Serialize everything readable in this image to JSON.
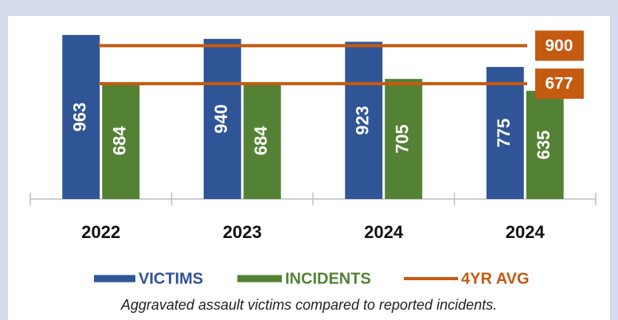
{
  "chart_data": {
    "type": "bar",
    "categories": [
      "2022",
      "2023",
      "2024",
      "2024"
    ],
    "series": [
      {
        "name": "VICTIMS",
        "color": "#2f5597",
        "values": [
          963,
          940,
          923,
          775
        ]
      },
      {
        "name": "INCIDENTS",
        "color": "#548235",
        "values": [
          684,
          684,
          705,
          635
        ]
      }
    ],
    "reference_lines": {
      "name": "4YR AVG",
      "color": "#c55a11",
      "values": [
        900,
        677
      ]
    },
    "ylim": [
      0,
      1000
    ],
    "caption": "Aggravated assault victims compared to reported incidents."
  }
}
